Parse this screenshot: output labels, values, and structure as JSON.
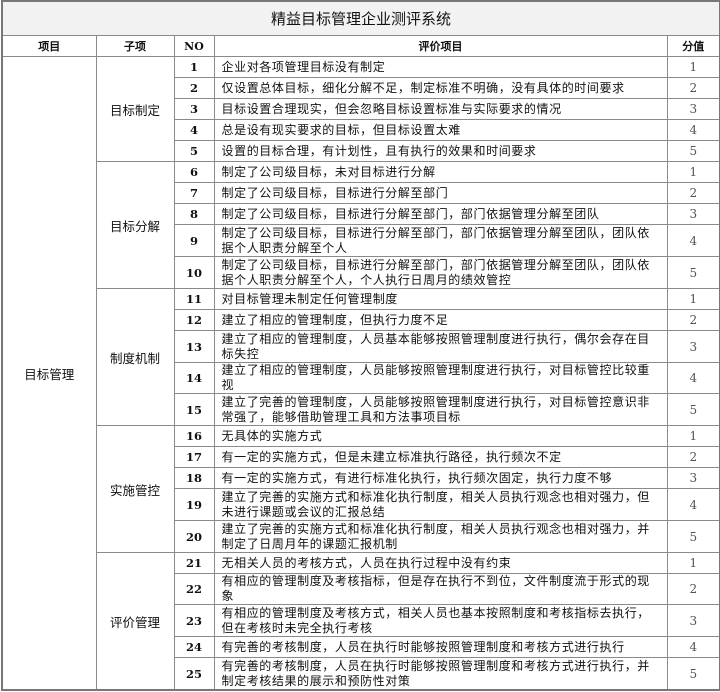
{
  "title": "精益目标管理企业测评系统",
  "headers": {
    "item": "项目",
    "sub": "子项",
    "no": "NO",
    "desc": "评价项目",
    "score": "分值"
  },
  "item": "目标管理",
  "groups": [
    {
      "name": "目标制定",
      "rows": [
        {
          "no": "1",
          "desc": "企业对各项管理目标没有制定",
          "score": "1"
        },
        {
          "no": "2",
          "desc": "仅设置总体目标，细化分解不足，制定标准不明确，没有具体的时间要求",
          "score": "2"
        },
        {
          "no": "3",
          "desc": "目标设置合理现实，但会忽略目标设置标准与实际要求的情况",
          "score": "3"
        },
        {
          "no": "4",
          "desc": "总是设有现实要求的目标，但目标设置太难",
          "score": "4"
        },
        {
          "no": "5",
          "desc": "设置的目标合理，有计划性，且有执行的效果和时间要求",
          "score": "5"
        }
      ]
    },
    {
      "name": "目标分解",
      "rows": [
        {
          "no": "6",
          "desc": "制定了公司级目标，未对目标进行分解",
          "score": "1"
        },
        {
          "no": "7",
          "desc": "制定了公司级目标，目标进行分解至部门",
          "score": "2"
        },
        {
          "no": "8",
          "desc": "制定了公司级目标，目标进行分解至部门，部门依据管理分解至团队",
          "score": "3"
        },
        {
          "no": "9",
          "desc": "制定了公司级目标，目标进行分解至部门，部门依据管理分解至团队，团队依据个人职责分解至个人",
          "score": "4"
        },
        {
          "no": "10",
          "desc": "制定了公司级目标，目标进行分解至部门，部门依据管理分解至团队，团队依据个人职责分解至个人，个人执行日周月的绩效管控",
          "score": "5"
        }
      ]
    },
    {
      "name": "制度机制",
      "rows": [
        {
          "no": "11",
          "desc": "对目标管理未制定任何管理制度",
          "score": "1"
        },
        {
          "no": "12",
          "desc": "建立了相应的管理制度，但执行力度不足",
          "score": "2"
        },
        {
          "no": "13",
          "desc": "建立了相应的管理制度，人员基本能够按照管理制度进行执行，偶尔会存在目标失控",
          "score": "3"
        },
        {
          "no": "14",
          "desc": "建立了相应的管理制度，人员能够按照管理制度进行执行，对目标管控比较重视",
          "score": "4"
        },
        {
          "no": "15",
          "desc": "建立了完善的管理制度，人员能够按照管理制度进行执行，对目标管控意识非常强了，能够借助管理工具和方法事项目标",
          "score": "5"
        }
      ]
    },
    {
      "name": "实施管控",
      "rows": [
        {
          "no": "16",
          "desc": "无具体的实施方式",
          "score": "1"
        },
        {
          "no": "17",
          "desc": "有一定的实施方式，但是未建立标准执行路径，执行频次不定",
          "score": "2"
        },
        {
          "no": "18",
          "desc": "有一定的实施方式，有进行标准化执行，执行频次固定，执行力度不够",
          "score": "3"
        },
        {
          "no": "19",
          "desc": "建立了完善的实施方式和标准化执行制度，相关人员执行观念也相对强力，但未进行课题或会议的汇报总结",
          "score": "4"
        },
        {
          "no": "20",
          "desc": "建立了完善的实施方式和标准化执行制度，相关人员执行观念也相对强力，并制定了日周月年的课题汇报机制",
          "score": "5"
        }
      ]
    },
    {
      "name": "评价管理",
      "rows": [
        {
          "no": "21",
          "desc": "无相关人员的考核方式，人员在执行过程中没有约束",
          "score": "1"
        },
        {
          "no": "22",
          "desc": "有相应的管理制度及考核指标，但是存在执行不到位，文件制度流于形式的现象",
          "score": "2"
        },
        {
          "no": "23",
          "desc": "有相应的管理制度及考核方式，相关人员也基本按照制度和考核指标去执行，但在考核时未完全执行考核",
          "score": "3"
        },
        {
          "no": "24",
          "desc": "有完善的考核制度，人员在执行时能够按照管理制度和考核方式进行执行",
          "score": "4"
        },
        {
          "no": "25",
          "desc": "有完善的考核制度，人员在执行时能够按照管理制度和考核方式进行执行，并制定考核结果的展示和预防性对策",
          "score": "5"
        }
      ]
    }
  ]
}
